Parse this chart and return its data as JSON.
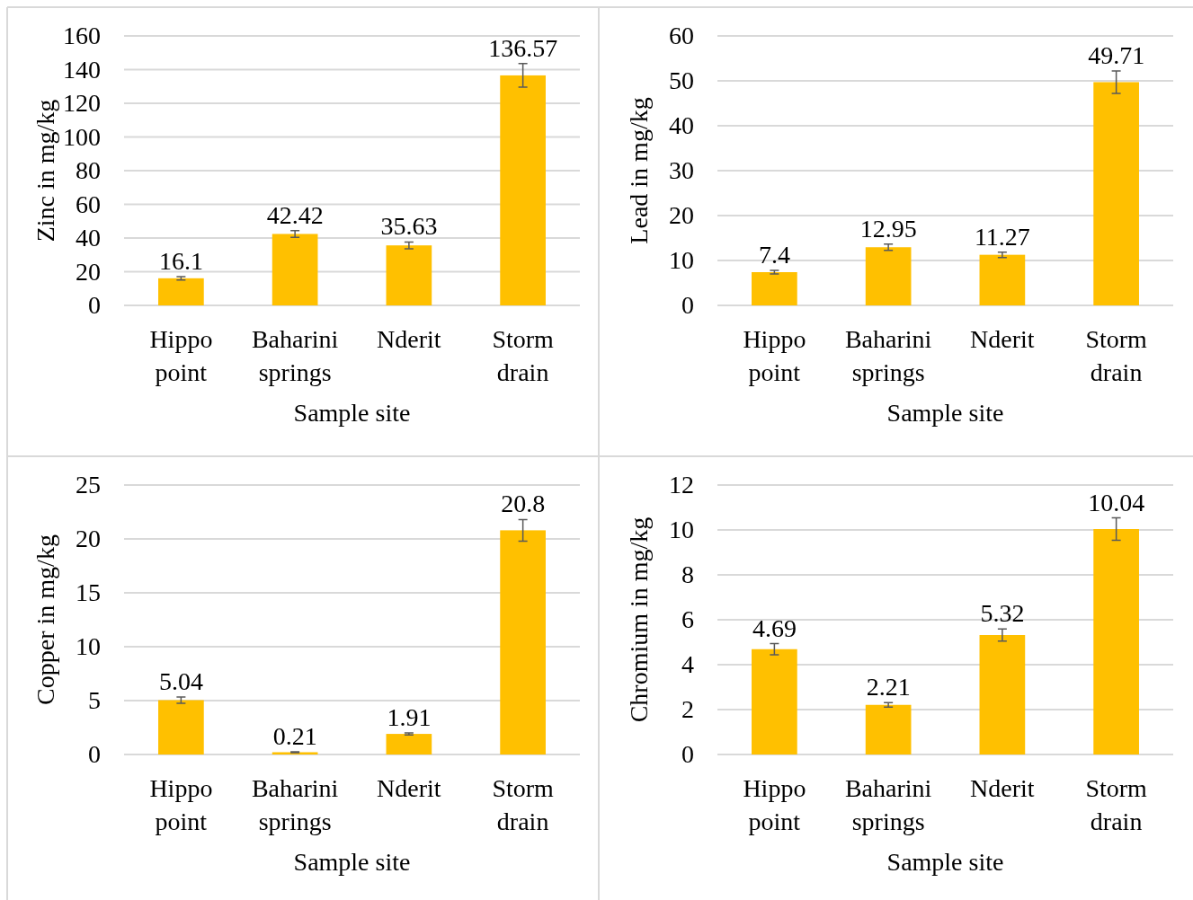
{
  "chart_data": [
    {
      "type": "bar",
      "xlabel": "Sample site",
      "ylabel": "Zinc in mg/kg",
      "categories": [
        "Hippo point",
        "Baharini springs",
        "Nderit",
        "Storm drain"
      ],
      "values": [
        16.1,
        42.42,
        35.63,
        136.57
      ],
      "errors": [
        1,
        2,
        2,
        7
      ],
      "color": "#ffc000",
      "ylim": [
        0,
        160
      ],
      "yticks": [
        0,
        20,
        40,
        60,
        80,
        100,
        120,
        140,
        160
      ],
      "grid": "y",
      "data_labels": true
    },
    {
      "type": "bar",
      "xlabel": "Sample site",
      "ylabel": "Lead in mg/kg",
      "categories": [
        "Hippo point",
        "Baharini springs",
        "Nderit",
        "Storm drain"
      ],
      "values": [
        7.4,
        12.95,
        11.27,
        49.71
      ],
      "errors": [
        0.4,
        0.7,
        0.6,
        2.5
      ],
      "color": "#ffc000",
      "ylim": [
        0,
        60
      ],
      "yticks": [
        0,
        10,
        20,
        30,
        40,
        50,
        60
      ],
      "grid": "y",
      "data_labels": true
    },
    {
      "type": "bar",
      "xlabel": "Sample site",
      "ylabel": "Copper in mg/kg",
      "categories": [
        "Hippo point",
        "Baharini springs",
        "Nderit",
        "Storm drain"
      ],
      "values": [
        5.04,
        0.21,
        1.91,
        20.8
      ],
      "errors": [
        0.3,
        0.05,
        0.1,
        1
      ],
      "color": "#ffc000",
      "ylim": [
        0,
        25
      ],
      "yticks": [
        0,
        5,
        10,
        15,
        20,
        25
      ],
      "grid": "y",
      "data_labels": true
    },
    {
      "type": "bar",
      "xlabel": "Sample site",
      "ylabel": "Chromium in mg/kg",
      "categories": [
        "Hippo point",
        "Baharini springs",
        "Nderit",
        "Storm drain"
      ],
      "values": [
        4.69,
        2.21,
        5.32,
        10.04
      ],
      "errors": [
        0.25,
        0.1,
        0.27,
        0.5
      ],
      "color": "#ffc000",
      "ylim": [
        0,
        12
      ],
      "yticks": [
        0,
        2,
        4,
        6,
        8,
        10,
        12
      ],
      "grid": "y",
      "data_labels": true
    }
  ]
}
